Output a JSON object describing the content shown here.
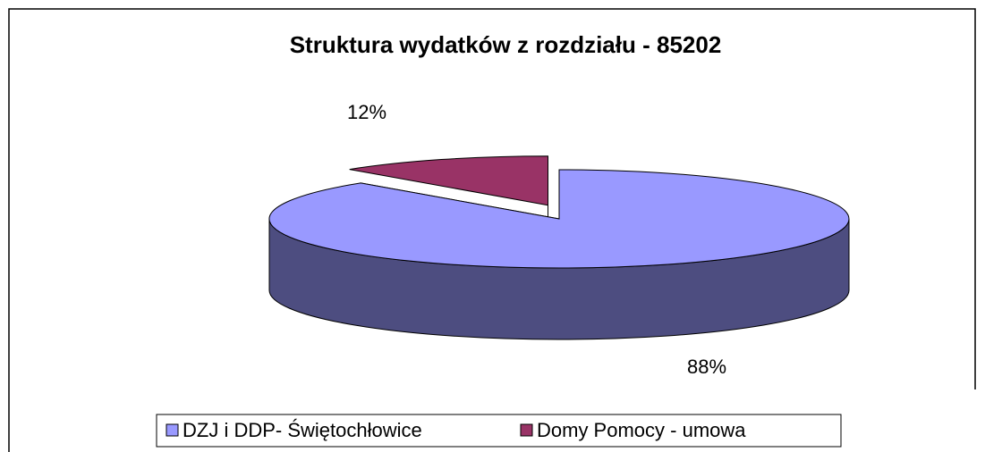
{
  "chart_data": {
    "type": "pie",
    "title": "Struktura wydatków z rozdziału - 85202",
    "categories": [
      "DZJ i DDP- Świętochłowice",
      "Domy Pomocy - umowa"
    ],
    "values": [
      88,
      12
    ],
    "value_labels": [
      "88%",
      "12%"
    ],
    "colors": [
      "#9999ff",
      "#993366"
    ],
    "legend": "bottom"
  }
}
